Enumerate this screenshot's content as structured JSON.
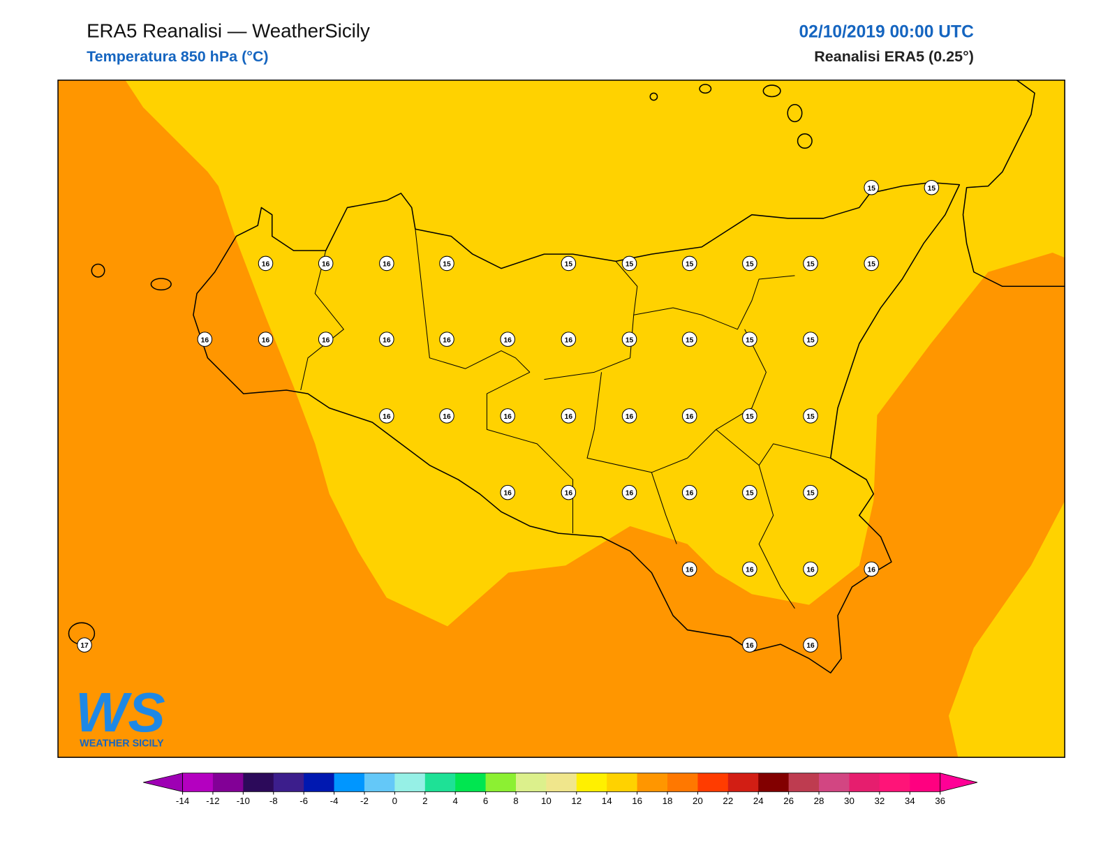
{
  "header": {
    "title": "ERA5 Reanalisi — WeatherSicily",
    "subtitle": "Temperatura 850 hPa (°C)",
    "date": "02/10/2019 00:00 UTC",
    "source": "Reanalisi ERA5 (0.25°)"
  },
  "map": {
    "points": [
      15,
      15,
      16,
      16,
      16,
      15,
      15,
      15,
      15,
      15,
      15,
      15,
      16,
      16,
      16,
      16,
      16,
      16,
      16,
      15,
      15,
      15,
      15,
      16,
      16,
      16,
      16,
      16,
      16,
      15,
      15,
      16,
      16,
      16,
      16,
      15,
      15,
      16,
      16,
      16,
      16,
      17,
      16,
      16
    ]
  },
  "logo": {
    "mark": "WS",
    "text": "WEATHER SICILY"
  },
  "colorbar": {
    "ticks": [
      -14,
      -12,
      -10,
      -8,
      -6,
      -4,
      -2,
      0,
      2,
      4,
      6,
      8,
      10,
      12,
      14,
      16,
      18,
      20,
      22,
      24,
      26,
      28,
      30,
      32,
      34,
      36
    ],
    "colors": [
      "#b400c0",
      "#820096",
      "#2c0a5a",
      "#3c1e8c",
      "#0018b0",
      "#0096ff",
      "#64c8f8",
      "#96f0e6",
      "#1ee196",
      "#00e650",
      "#8cf032",
      "#dcf08c",
      "#f0e68c",
      "#fff000",
      "#ffd200",
      "#ff9600",
      "#ff7800",
      "#ff3c00",
      "#d21e14",
      "#820000",
      "#be3c50",
      "#d24682",
      "#e61e6e",
      "#ff1478",
      "#ff0080"
    ],
    "under_color": "#9e00b4",
    "over_color": "#ff0096"
  }
}
